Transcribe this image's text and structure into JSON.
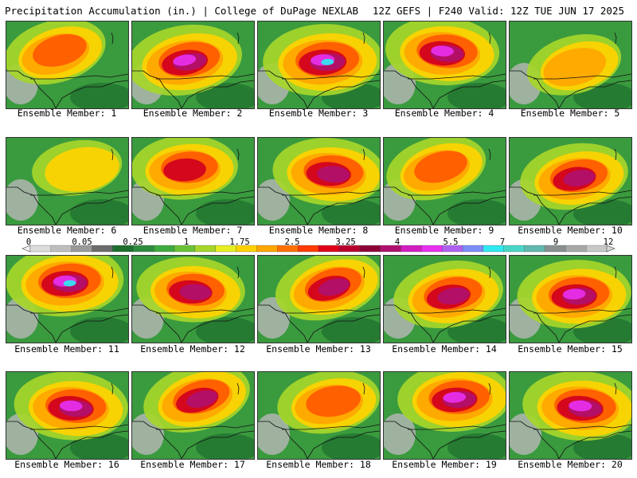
{
  "header": {
    "title_left": "Precipitation Accumulation (in.) | College of DuPage NEXLAB",
    "title_right": "12Z GEFS | F240 Valid: 12Z TUE JUN 17 2025"
  },
  "colorbar": {
    "labels": [
      "0",
      "0.05",
      "0.25",
      "1",
      "1.75",
      "2.5",
      "3.25",
      "4",
      "5.5",
      "7",
      "9",
      "12"
    ],
    "colors": [
      "#dcdcdc",
      "#bebebe",
      "#9a9a9a",
      "#6b6b6b",
      "#1e6e2e",
      "#2e8b3e",
      "#3faa3f",
      "#6ac236",
      "#a6d62a",
      "#e6ee22",
      "#ffd200",
      "#ffa600",
      "#ff7000",
      "#ff3a00",
      "#e0001a",
      "#b8002e",
      "#8e0038",
      "#b0106e",
      "#d21dc0",
      "#e830ee",
      "#b060f0",
      "#7c8cf8",
      "#30e8f0",
      "#4ad6c6",
      "#60b8b0",
      "#8a9090",
      "#a8a8a8",
      "#c8c8c8"
    ]
  },
  "panels": [
    {
      "caption": "Ensemble Member: 1",
      "intensity": 0.55,
      "core": [
        0.42,
        0.35
      ]
    },
    {
      "caption": "Ensemble Member: 2",
      "intensity": 0.9,
      "core": [
        0.45,
        0.45
      ]
    },
    {
      "caption": "Ensemble Member: 3",
      "intensity": 1.0,
      "core": [
        0.55,
        0.45
      ]
    },
    {
      "caption": "Ensemble Member: 4",
      "intensity": 0.85,
      "core": [
        0.5,
        0.35
      ]
    },
    {
      "caption": "Ensemble Member: 5",
      "intensity": 0.35,
      "core": [
        0.55,
        0.5
      ]
    },
    {
      "caption": "Ensemble Member: 6",
      "intensity": 0.2,
      "core": [
        0.6,
        0.35
      ]
    },
    {
      "caption": "Ensemble Member: 7",
      "intensity": 0.65,
      "core": [
        0.45,
        0.35
      ]
    },
    {
      "caption": "Ensemble Member: 8",
      "intensity": 0.8,
      "core": [
        0.6,
        0.4
      ]
    },
    {
      "caption": "Ensemble Member: 9",
      "intensity": 0.5,
      "core": [
        0.45,
        0.35
      ]
    },
    {
      "caption": "Ensemble Member: 10",
      "intensity": 0.7,
      "core": [
        0.55,
        0.45
      ]
    },
    {
      "caption": "Ensemble Member: 11",
      "intensity": 0.95,
      "core": [
        0.5,
        0.3
      ]
    },
    {
      "caption": "Ensemble Member: 12",
      "intensity": 0.7,
      "core": [
        0.5,
        0.4
      ]
    },
    {
      "caption": "Ensemble Member: 13",
      "intensity": 0.7,
      "core": [
        0.6,
        0.35
      ]
    },
    {
      "caption": "Ensemble Member: 14",
      "intensity": 0.75,
      "core": [
        0.55,
        0.45
      ]
    },
    {
      "caption": "Ensemble Member: 15",
      "intensity": 0.85,
      "core": [
        0.55,
        0.45
      ]
    },
    {
      "caption": "Ensemble Member: 16",
      "intensity": 0.85,
      "core": [
        0.55,
        0.4
      ]
    },
    {
      "caption": "Ensemble Member: 17",
      "intensity": 0.7,
      "core": [
        0.55,
        0.3
      ]
    },
    {
      "caption": "Ensemble Member: 18",
      "intensity": 0.55,
      "core": [
        0.6,
        0.35
      ]
    },
    {
      "caption": "Ensemble Member: 19",
      "intensity": 0.85,
      "core": [
        0.6,
        0.3
      ]
    },
    {
      "caption": "Ensemble Member: 20",
      "intensity": 0.9,
      "core": [
        0.6,
        0.4
      ]
    }
  ]
}
